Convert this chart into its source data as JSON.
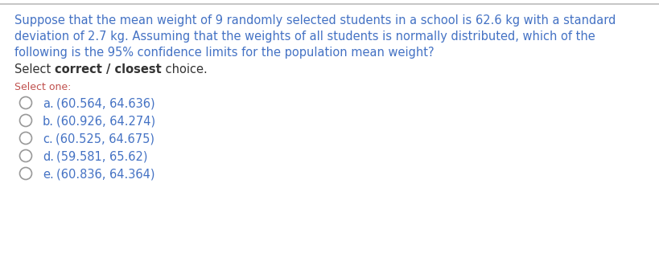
{
  "line1_parts": [
    {
      "text": "Suppose that the mean weight of 9 randomly selected students in a school is ",
      "bold": false
    },
    {
      "text": "62.6 kg",
      "bold": false
    },
    {
      "text": " with a standard",
      "bold": false
    }
  ],
  "line2_parts": [
    {
      "text": "deviation of ",
      "bold": false
    },
    {
      "text": "2.7 kg",
      "bold": false
    },
    {
      "text": ". Assuming that the weights of all students is normally distributed, which of the",
      "bold": false
    }
  ],
  "line3_parts": [
    {
      "text": "following is the 95% confidence limits for the population mean weight?",
      "bold": false
    }
  ],
  "select_parts": [
    {
      "text": "Select ",
      "bold": false,
      "color": "#333333"
    },
    {
      "text": "correct / closest",
      "bold": true,
      "color": "#333333"
    },
    {
      "text": " choice.",
      "bold": false,
      "color": "#333333"
    }
  ],
  "select_one_label": "Select one:",
  "options": [
    {
      "label": "a.",
      "value": "(60.564, 64.636)"
    },
    {
      "label": "b.",
      "value": "(60.926, 64.274)"
    },
    {
      "label": "c.",
      "value": "(60.525, 64.675)"
    },
    {
      "label": "d.",
      "value": "(59.581, 65.62)"
    },
    {
      "label": "e.",
      "value": "(60.836, 64.364)"
    }
  ],
  "question_color": "#4472C4",
  "option_color": "#4472C4",
  "select_one_color": "#C0504D",
  "body_color": "#333333",
  "background_color": "#FFFFFF",
  "top_border_color": "#BBBBBB",
  "font_size_q": 10.5,
  "font_size_select": 10.5,
  "font_size_select_one": 9.0,
  "font_size_option": 10.5
}
